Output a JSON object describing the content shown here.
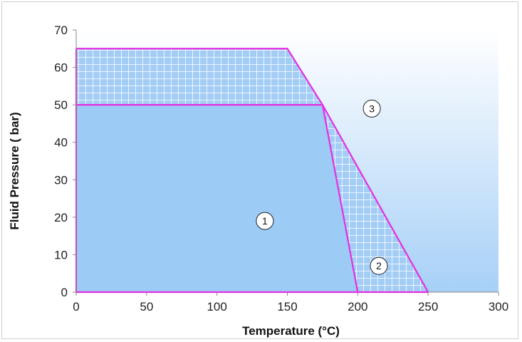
{
  "chart_data": {
    "type": "area",
    "xlabel": "Temperature (°C)",
    "ylabel": "Fluid Pressure ( bar)",
    "xlim": [
      0,
      300
    ],
    "ylim": [
      0,
      70
    ],
    "x_ticks": [
      "0",
      "50",
      "100",
      "150",
      "200",
      "250",
      "300"
    ],
    "y_ticks": [
      "0",
      "10",
      "20",
      "30",
      "40",
      "50",
      "60",
      "70"
    ],
    "grid": false,
    "regions": [
      {
        "label": "1",
        "fill": "solid",
        "color": "#9ccbf5",
        "points": [
          [
            0,
            0
          ],
          [
            0,
            50
          ],
          [
            175,
            50
          ],
          [
            200,
            0
          ]
        ],
        "marker_at": [
          134,
          19
        ]
      },
      {
        "label": "2",
        "fill": "hatched-grid",
        "color": "#9ccbf5",
        "points": [
          [
            0,
            50
          ],
          [
            0,
            65
          ],
          [
            150,
            65
          ],
          [
            175,
            50
          ],
          [
            250,
            0
          ],
          [
            200,
            0
          ]
        ],
        "marker_at": [
          215,
          7
        ]
      },
      {
        "label": "3",
        "fill": "gradient",
        "color": "#c7e0f8",
        "points": [
          [
            150,
            65
          ],
          [
            175,
            50
          ],
          [
            250,
            0
          ],
          [
            300,
            0
          ],
          [
            300,
            70
          ],
          [
            150,
            70
          ]
        ],
        "marker_at": [
          210,
          49
        ]
      }
    ],
    "boundary_lines": [
      {
        "points": [
          [
            0,
            65
          ],
          [
            150,
            65
          ],
          [
            175,
            50
          ],
          [
            250,
            0
          ]
        ]
      },
      {
        "points": [
          [
            0,
            50
          ],
          [
            175,
            50
          ],
          [
            200,
            0
          ]
        ]
      },
      {
        "points": [
          [
            0,
            0
          ],
          [
            0,
            65
          ]
        ]
      }
    ],
    "colors": {
      "boundary": "#e62ee0",
      "solid_fill": "#9ccbf5",
      "grid_lines": "#ffffff",
      "axis": "#888888"
    }
  }
}
